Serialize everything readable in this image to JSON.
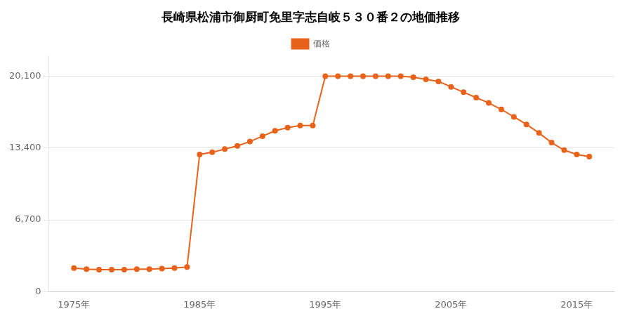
{
  "chart_data": {
    "type": "line",
    "title": "長崎県松浦市御厨町免里字志自岐５３０番２の地価推移",
    "x": [
      1975,
      1976,
      1977,
      1978,
      1979,
      1980,
      1981,
      1982,
      1983,
      1984,
      1985,
      1986,
      1987,
      1988,
      1989,
      1990,
      1991,
      1992,
      1993,
      1994,
      1995,
      1996,
      1997,
      1998,
      1999,
      2000,
      2001,
      2002,
      2003,
      2004,
      2005,
      2006,
      2007,
      2008,
      2009,
      2010,
      2011,
      2012,
      2013,
      2014,
      2015,
      2016
    ],
    "series": [
      {
        "name": "価格",
        "color": "#E8621A",
        "marker": "circle",
        "line_style": "solid",
        "values": [
          2200,
          2100,
          2050,
          2050,
          2050,
          2100,
          2100,
          2150,
          2200,
          2300,
          12800,
          13000,
          13300,
          13600,
          14000,
          14500,
          15000,
          15300,
          15500,
          15500,
          20100,
          20100,
          20100,
          20100,
          20100,
          20100,
          20100,
          20000,
          19800,
          19600,
          19100,
          18600,
          18100,
          17600,
          17000,
          16300,
          15600,
          14800,
          13900,
          13200,
          12800,
          12600
        ]
      }
    ],
    "xlim": [
      1973,
      2018
    ],
    "xticks": [
      {
        "value": 1975,
        "label": "1975年"
      },
      {
        "value": 1985,
        "label": "1985年"
      },
      {
        "value": 1995,
        "label": "1995年"
      },
      {
        "value": 2005,
        "label": "2005年"
      },
      {
        "value": 2015,
        "label": "2015年"
      }
    ],
    "ylim": [
      0,
      22000
    ],
    "yticks": [
      0,
      {
        "value": 6700,
        "label": "6,700"
      },
      {
        "value": 13400,
        "label": "13,400"
      },
      {
        "value": 20100,
        "label": "20,100"
      }
    ],
    "grid": true,
    "legend": "top"
  }
}
